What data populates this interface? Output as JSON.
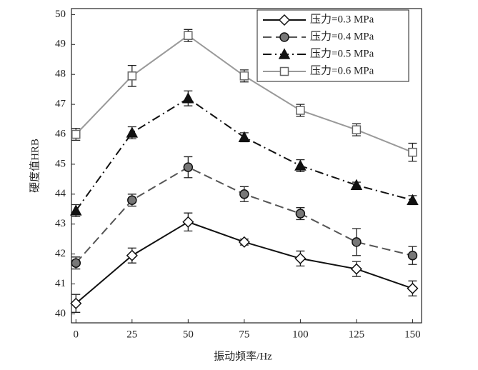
{
  "chart_data": {
    "type": "line",
    "x_label": "振动频率/Hz",
    "y_label": "硬度值HRB",
    "x": [
      0,
      25,
      50,
      75,
      100,
      125,
      150
    ],
    "xlim": [
      -2,
      154
    ],
    "xticks": [
      0,
      25,
      50,
      75,
      100,
      125,
      150
    ],
    "ylim": [
      39.7,
      50.2
    ],
    "yticks": [
      40,
      41,
      42,
      43,
      44,
      45,
      46,
      47,
      48,
      49,
      50
    ],
    "legend": "upper-right",
    "series": [
      {
        "name": "压力=0.3 MPa",
        "color": "#111111",
        "dash": "solid",
        "marker": "diamond",
        "marker_fill": "#ffffff",
        "values": [
          40.35,
          41.95,
          43.07,
          42.4,
          41.85,
          41.5,
          40.85
        ],
        "errors": [
          0.3,
          0.25,
          0.3,
          0.1,
          0.25,
          0.25,
          0.25
        ]
      },
      {
        "name": "压力=0.4 MPa",
        "color": "#555555",
        "dash": "dashed",
        "marker": "circle",
        "marker_fill": "#777777",
        "values": [
          41.7,
          43.8,
          44.9,
          44.0,
          43.35,
          42.4,
          41.95
        ],
        "errors": [
          0.2,
          0.2,
          0.35,
          0.25,
          0.2,
          0.45,
          0.3
        ]
      },
      {
        "name": "压力=0.5 MPa",
        "color": "#111111",
        "dash": "dashdot",
        "marker": "triangle",
        "marker_fill": "#111111",
        "values": [
          43.45,
          46.05,
          47.2,
          45.9,
          44.95,
          44.3,
          43.8
        ],
        "errors": [
          0.2,
          0.2,
          0.25,
          0.15,
          0.2,
          0.1,
          0.15
        ]
      },
      {
        "name": "压力=0.6 MPa",
        "color": "#999999",
        "dash": "solid",
        "marker": "square",
        "marker_fill": "#ffffff",
        "values": [
          46.0,
          47.95,
          49.3,
          47.95,
          46.8,
          46.15,
          45.4
        ],
        "errors": [
          0.2,
          0.35,
          0.2,
          0.2,
          0.2,
          0.2,
          0.3
        ]
      }
    ]
  }
}
